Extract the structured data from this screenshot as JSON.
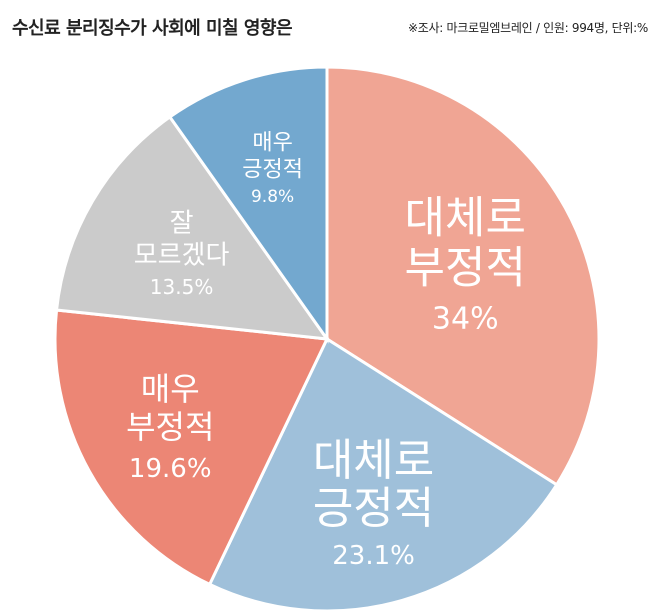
{
  "title": "수신료 분리징수가 사회에 미칠 영향은",
  "source": "※조사: 마크로밀엠브레인 / 인원: 994명, 단위:%",
  "chart_data": {
    "type": "pie",
    "unit": "%",
    "slices": [
      {
        "lines": [
          "대체로",
          "부정적"
        ],
        "value": 34,
        "value_label": "34%",
        "color": "#f0a594"
      },
      {
        "lines": [
          "대체로",
          "긍정적"
        ],
        "value": 23.1,
        "value_label": "23.1%",
        "color": "#9fc0da"
      },
      {
        "lines": [
          "매우",
          "부정적"
        ],
        "value": 19.6,
        "value_label": "19.6%",
        "color": "#ec8675"
      },
      {
        "lines": [
          "잘",
          "모르겠다"
        ],
        "value": 13.5,
        "value_label": "13.5%",
        "color": "#cbcbcb"
      },
      {
        "lines": [
          "매우",
          "긍정적"
        ],
        "value": 9.8,
        "value_label": "9.8%",
        "color": "#73a8cf"
      }
    ]
  }
}
